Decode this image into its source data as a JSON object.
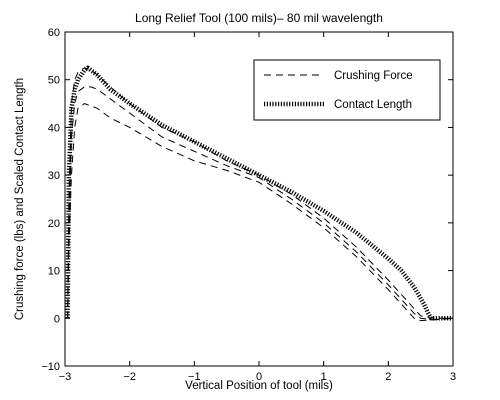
{
  "chart_data": {
    "type": "line",
    "title": "Long Relief Tool (100 mils)– 80 mil wavelength",
    "xlabel": "Vertical Position of tool (mils)",
    "ylabel": "Crushing force (lbs) and Scaled Contact Length",
    "xlim": [
      -3,
      3
    ],
    "ylim": [
      -10,
      60
    ],
    "xticks": [
      -3,
      -2,
      -1,
      0,
      1,
      2,
      3
    ],
    "yticks": [
      -10,
      0,
      10,
      20,
      30,
      40,
      50,
      60
    ],
    "grid": false,
    "legend_position": "top-right",
    "legend": [
      "Crushing Force",
      "Contact Length"
    ],
    "series": [
      {
        "name": "Crushing Force",
        "style": "dashed",
        "color": "#000000",
        "x": [
          -2.96,
          -2.94,
          -2.9,
          -2.85,
          -2.8,
          -2.7,
          -2.6,
          -2.5,
          -2.3,
          -2.0,
          -1.5,
          -1.0,
          -0.5,
          0.0,
          0.5,
          1.0,
          1.5,
          2.0,
          2.2,
          2.4,
          2.5,
          2.7,
          3.0
        ],
        "y": [
          0,
          15,
          30,
          40,
          44,
          45,
          44.5,
          44,
          42,
          40,
          36,
          33,
          31,
          28.5,
          24,
          19,
          13,
          6,
          3,
          0,
          -0.5,
          -0.3,
          0
        ]
      },
      {
        "name": "Crushing Force",
        "style": "dashed",
        "color": "#000000",
        "x": [
          -2.96,
          -2.94,
          -2.9,
          -2.85,
          -2.8,
          -2.7,
          -2.6,
          -2.5,
          -2.3,
          -2.0,
          -1.5,
          -1.0,
          -0.5,
          0.0,
          0.5,
          1.0,
          1.5,
          2.0,
          2.2,
          2.4,
          2.5,
          2.7,
          3.0
        ],
        "y": [
          0,
          20,
          38,
          45,
          47.5,
          48.5,
          48.5,
          48,
          46,
          43,
          38,
          35,
          32,
          29.5,
          25,
          20,
          14,
          7,
          4,
          1,
          0,
          -0.3,
          0
        ]
      },
      {
        "name": "Crushing Force",
        "style": "dashed",
        "color": "#000000",
        "x": [
          -2.96,
          -2.94,
          -2.9,
          -2.85,
          -2.8,
          -2.7,
          -2.6,
          -2.5,
          -2.3,
          -2.0,
          -1.5,
          -1.0,
          -0.5,
          0.0,
          0.5,
          1.0,
          1.5,
          2.0,
          2.2,
          2.4,
          2.5,
          2.7,
          3.0
        ],
        "y": [
          0,
          25,
          45,
          50,
          51.5,
          52.5,
          52,
          51,
          48.5,
          45,
          40,
          37,
          33,
          30,
          26,
          21,
          15,
          8,
          5,
          2,
          0.5,
          0,
          0
        ]
      },
      {
        "name": "Contact Length",
        "style": "dotted",
        "color": "#000000",
        "x": [
          -2.96,
          -2.94,
          -2.9,
          -2.85,
          -2.8,
          -2.75,
          -2.7,
          -2.65,
          -2.5,
          -2.3,
          -2.0,
          -1.5,
          -1.0,
          -0.5,
          0.0,
          0.5,
          1.0,
          1.5,
          2.0,
          2.2,
          2.4,
          2.55,
          2.62,
          2.66,
          2.7,
          3.0
        ],
        "y": [
          0,
          30,
          44,
          48,
          50,
          51,
          52,
          52.5,
          51,
          48,
          45,
          40.5,
          37,
          33.5,
          30,
          26.5,
          22.5,
          18,
          12.5,
          10,
          6.5,
          3,
          1,
          0,
          0,
          0
        ]
      }
    ]
  }
}
